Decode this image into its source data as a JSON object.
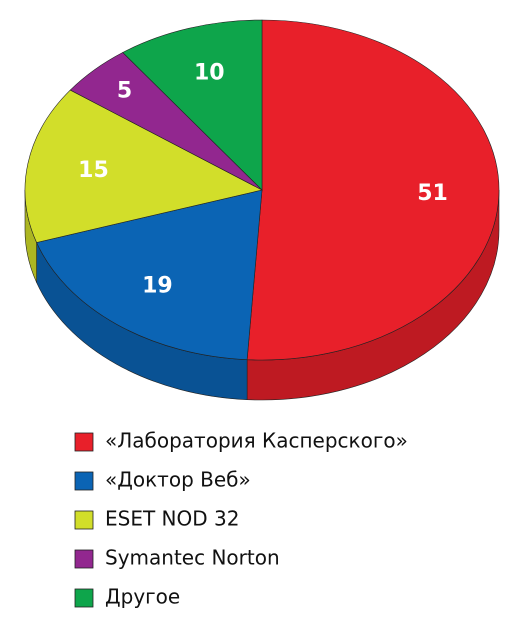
{
  "chart_data": {
    "type": "pie",
    "categories": [
      "«Лаборатория Касперского»",
      "«Доктор Веб»",
      "ESET NOD 32",
      "Symantec Norton",
      "Другое"
    ],
    "values": [
      51,
      19,
      15,
      5,
      10
    ],
    "colors": [
      "#e8202a",
      "#0b64b4",
      "#d2de2a",
      "#92278f",
      "#0ea54b"
    ]
  }
}
